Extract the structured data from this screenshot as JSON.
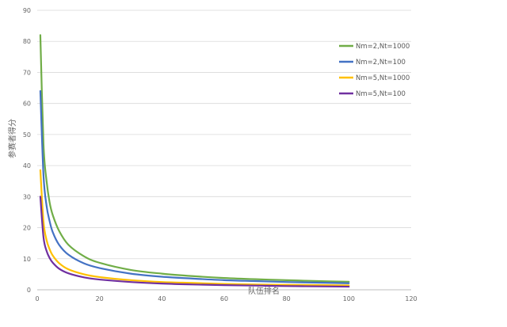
{
  "chart_data": {
    "type": "line",
    "xlabel": "队伍排名",
    "ylabel": "参赛者得分",
    "xlim": [
      0,
      120
    ],
    "ylim": [
      0,
      90
    ],
    "xticks": [
      "0",
      "20",
      "40",
      "60",
      "80",
      "100",
      "120"
    ],
    "yticks": [
      "0",
      "10",
      "20",
      "30",
      "40",
      "50",
      "60",
      "70",
      "80",
      "90"
    ],
    "grid": "horizontal",
    "legend_position": "right",
    "series": [
      {
        "name": "Nm=2,Nt=1000",
        "color": "#70ad47",
        "points": [
          [
            1,
            82
          ],
          [
            2,
            47
          ],
          [
            3,
            35
          ],
          [
            4,
            28
          ],
          [
            5,
            24
          ],
          [
            7,
            19
          ],
          [
            10,
            14.5
          ],
          [
            15,
            10.8
          ],
          [
            20,
            8.7
          ],
          [
            30,
            6.4
          ],
          [
            40,
            5.2
          ],
          [
            50,
            4.4
          ],
          [
            60,
            3.8
          ],
          [
            70,
            3.4
          ],
          [
            80,
            3.1
          ],
          [
            90,
            2.8
          ],
          [
            100,
            2.6
          ]
        ]
      },
      {
        "name": "Nm=2,Nt=100",
        "color": "#4472c4",
        "points": [
          [
            1,
            64
          ],
          [
            2,
            37
          ],
          [
            3,
            27
          ],
          [
            4,
            22
          ],
          [
            5,
            18.5
          ],
          [
            7,
            14.5
          ],
          [
            10,
            11.3
          ],
          [
            15,
            8.5
          ],
          [
            20,
            7
          ],
          [
            30,
            5.2
          ],
          [
            40,
            4.2
          ],
          [
            50,
            3.6
          ],
          [
            60,
            3.1
          ],
          [
            70,
            2.8
          ],
          [
            80,
            2.5
          ],
          [
            90,
            2.3
          ],
          [
            100,
            2.1
          ]
        ]
      },
      {
        "name": "Nm=5,Nt=1000",
        "color": "#ffc000",
        "points": [
          [
            1,
            38.5
          ],
          [
            2,
            22
          ],
          [
            3,
            16
          ],
          [
            4,
            13
          ],
          [
            5,
            11
          ],
          [
            7,
            8.6
          ],
          [
            10,
            6.6
          ],
          [
            15,
            5
          ],
          [
            20,
            4.1
          ],
          [
            30,
            3.1
          ],
          [
            40,
            2.5
          ],
          [
            50,
            2.2
          ],
          [
            60,
            1.9
          ],
          [
            70,
            1.7
          ],
          [
            80,
            1.6
          ],
          [
            90,
            1.5
          ],
          [
            100,
            1.4
          ]
        ]
      },
      {
        "name": "Nm=5,Nt=100",
        "color": "#7030a0",
        "points": [
          [
            1,
            30
          ],
          [
            2,
            17
          ],
          [
            3,
            12.5
          ],
          [
            4,
            10.2
          ],
          [
            5,
            8.7
          ],
          [
            7,
            6.8
          ],
          [
            10,
            5.3
          ],
          [
            15,
            4
          ],
          [
            20,
            3.3
          ],
          [
            30,
            2.5
          ],
          [
            40,
            2
          ],
          [
            50,
            1.7
          ],
          [
            60,
            1.5
          ],
          [
            70,
            1.35
          ],
          [
            80,
            1.2
          ],
          [
            90,
            1.1
          ],
          [
            100,
            1
          ]
        ]
      }
    ]
  }
}
